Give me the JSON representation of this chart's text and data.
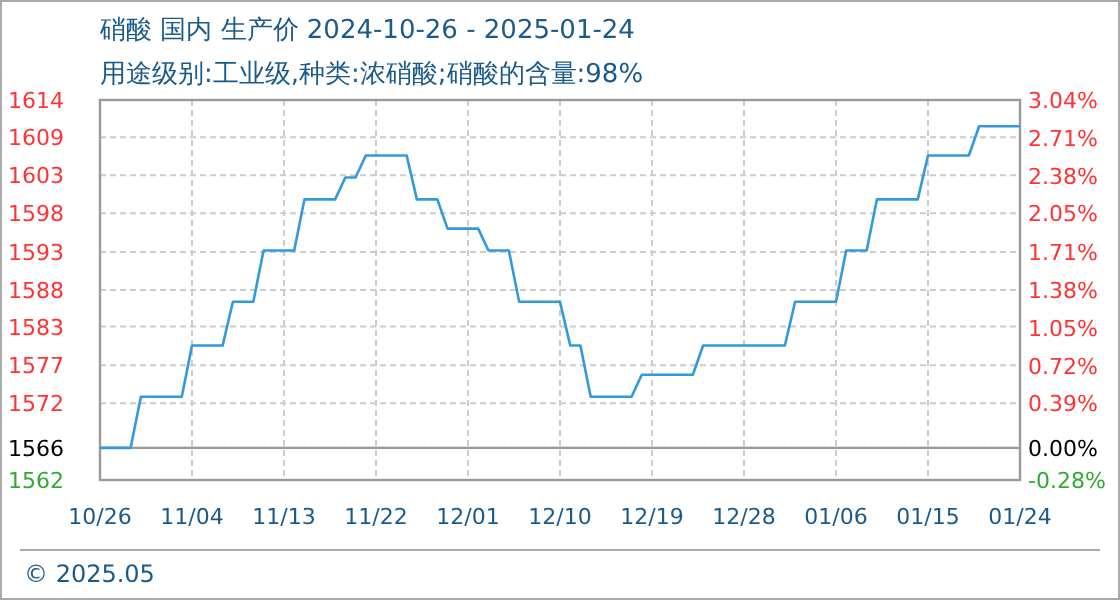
{
  "chart_data": {
    "type": "line",
    "title": "硝酸 国内 生产价 2024-10-26 - 2025-01-24",
    "subtitle": "用途级别:工业级,种类:浓硝酸;硝酸的含量:98%",
    "annotations": [
      "© 2025.05"
    ],
    "x": [
      "2024-10-26",
      "2024-10-29",
      "2024-10-30",
      "2024-11-03",
      "2024-11-04",
      "2024-11-07",
      "2024-11-08",
      "2024-11-10",
      "2024-11-11",
      "2024-11-14",
      "2024-11-15",
      "2024-11-18",
      "2024-11-19",
      "2024-11-20",
      "2024-11-21",
      "2024-11-25",
      "2024-11-26",
      "2024-11-28",
      "2024-11-29",
      "2024-12-02",
      "2024-12-03",
      "2024-12-05",
      "2024-12-06",
      "2024-12-10",
      "2024-12-11",
      "2024-12-12",
      "2024-12-13",
      "2024-12-17",
      "2024-12-18",
      "2024-12-23",
      "2024-12-24",
      "2025-01-01",
      "2025-01-02",
      "2025-01-06",
      "2025-01-07",
      "2025-01-09",
      "2025-01-10",
      "2025-01-14",
      "2025-01-15",
      "2025-01-19",
      "2025-01-20",
      "2025-01-24"
    ],
    "series": [
      {
        "color": "#3399dd",
        "values": [
          1566,
          1566,
          1573,
          1573,
          1580,
          1580,
          1586,
          1586,
          1593,
          1593,
          1600,
          1600,
          1603,
          1603,
          1606,
          1606,
          1600,
          1600,
          1596,
          1596,
          1593,
          1593,
          1586,
          1586,
          1580,
          1580,
          1573,
          1573,
          1576,
          1576,
          1580,
          1580,
          1586,
          1586,
          1593,
          1593,
          1600,
          1600,
          1606,
          1606,
          1610,
          1610
        ]
      }
    ],
    "xlim": [
      "2024-10-26",
      "2025-01-24"
    ],
    "xticks": [
      {
        "value": "2024-10-26",
        "label": "10/26"
      },
      {
        "value": "2024-11-04",
        "label": "11/04"
      },
      {
        "value": "2024-11-13",
        "label": "11/13"
      },
      {
        "value": "2024-11-22",
        "label": "11/22"
      },
      {
        "value": "2024-12-01",
        "label": "12/01"
      },
      {
        "value": "2024-12-10",
        "label": "12/10"
      },
      {
        "value": "2024-12-19",
        "label": "12/19"
      },
      {
        "value": "2024-12-28",
        "label": "12/28"
      },
      {
        "value": "2025-01-06",
        "label": "01/06"
      },
      {
        "value": "2025-01-15",
        "label": "01/15"
      },
      {
        "value": "2025-01-24",
        "label": "01/24"
      }
    ],
    "ylim": [
      1561.6,
      1613.6
    ],
    "yticks": [
      {
        "value": 1561.6,
        "label": "1562"
      },
      {
        "value": 1566,
        "label": "1566"
      },
      {
        "value": 1572.1,
        "label": "1572"
      },
      {
        "value": 1577.3,
        "label": "1577"
      },
      {
        "value": 1582.6,
        "label": "1583"
      },
      {
        "value": 1587.6,
        "label": "1588"
      },
      {
        "value": 1592.8,
        "label": "1593"
      },
      {
        "value": 1598.1,
        "label": "1598"
      },
      {
        "value": 1603.3,
        "label": "1603"
      },
      {
        "value": 1608.5,
        "label": "1609"
      },
      {
        "value": 1613.6,
        "label": "1614"
      }
    ],
    "y2lim": [
      -0.28,
      3.04
    ],
    "y2ticks": [
      {
        "value": -0.28,
        "label": "-0.28%"
      },
      {
        "value": 0,
        "label": "0.00%"
      },
      {
        "value": 0.39,
        "label": "0.39%"
      },
      {
        "value": 0.72,
        "label": "0.72%"
      },
      {
        "value": 1.05,
        "label": "1.05%"
      },
      {
        "value": 1.38,
        "label": "1.38%"
      },
      {
        "value": 1.71,
        "label": "1.71%"
      },
      {
        "value": 2.05,
        "label": "2.05%"
      },
      {
        "value": 2.38,
        "label": "2.38%"
      },
      {
        "value": 2.71,
        "label": "2.71%"
      },
      {
        "value": 3.04,
        "label": "3.04%"
      }
    ],
    "ref_lines": [
      {
        "axis": "y",
        "value": 1566,
        "color": "#999999",
        "line_style": "solid"
      }
    ],
    "grid": true,
    "line_style": "solid",
    "marker": "none"
  }
}
